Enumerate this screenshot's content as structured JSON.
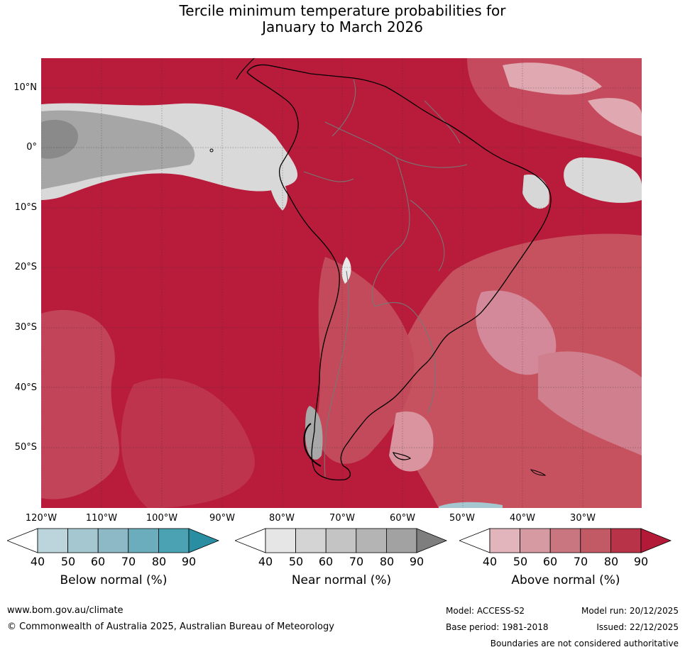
{
  "title": {
    "line1": "Tercile minimum temperature probabilities for",
    "line2": "January to March 2026"
  },
  "map": {
    "region": "South America",
    "latitude_labels": [
      "10°N",
      "0°",
      "10°S",
      "20°S",
      "30°S",
      "40°S",
      "50°S"
    ],
    "longitude_labels": [
      "120°W",
      "110°W",
      "100°W",
      "90°W",
      "80°W",
      "70°W",
      "60°W",
      "50°W",
      "40°W",
      "30°W"
    ]
  },
  "legends": [
    {
      "title": "Below normal (%)",
      "ticks": [
        "40",
        "50",
        "60",
        "70",
        "80",
        "90"
      ],
      "colors": [
        "#ffffff",
        "#bcd5dc",
        "#a5c7d0",
        "#8cb9c5",
        "#6cadbd",
        "#4aa2b3",
        "#2a8ea3"
      ]
    },
    {
      "title": "Near normal (%)",
      "ticks": [
        "40",
        "50",
        "60",
        "70",
        "80",
        "90"
      ],
      "colors": [
        "#ffffff",
        "#e6e6e6",
        "#d4d4d4",
        "#c4c4c4",
        "#b4b4b4",
        "#a2a2a2",
        "#7e7e7e"
      ]
    },
    {
      "title": "Above normal (%)",
      "ticks": [
        "40",
        "50",
        "60",
        "70",
        "80",
        "90"
      ],
      "colors": [
        "#ffffff",
        "#e2b5bc",
        "#d59aa2",
        "#c97680",
        "#c25a66",
        "#b83248",
        "#b21a38"
      ]
    }
  ],
  "footer": {
    "website": "www.bom.gov.au/climate",
    "copyright": "© Commonwealth of Australia 2025, Australian Bureau of Meteorology",
    "model": "Model: ACCESS-S2",
    "base_period": "Base period: 1981-2018",
    "model_run": "Model run: 20/12/2025",
    "issued": "Issued: 22/12/2025",
    "disclaimer": "Boundaries are not considered authoritative"
  }
}
